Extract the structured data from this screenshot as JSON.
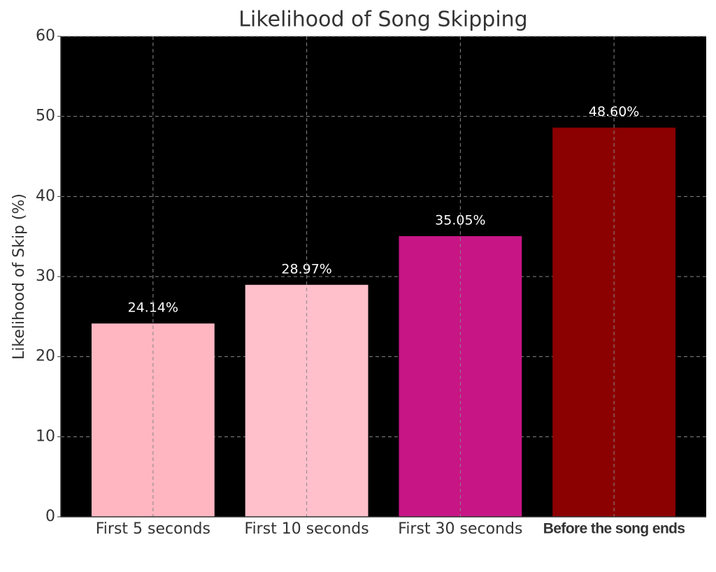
{
  "chart_data": {
    "type": "bar",
    "title": "Likelihood of Song Skipping",
    "y_label": "Likelihood of Skip (%)",
    "categories": [
      "First 5 seconds",
      "First 10 seconds",
      "First 30 seconds",
      "Before the song ends"
    ],
    "values": [
      24.14,
      28.97,
      35.05,
      48.6
    ],
    "value_labels": [
      "24.14%",
      "28.97%",
      "35.05%",
      "48.60%"
    ],
    "colors": [
      "#ffb6c1",
      "#ffc0cb",
      "#c71585",
      "#8b0000"
    ],
    "ylim": [
      0,
      60
    ],
    "yticks": [
      0,
      10,
      20,
      30,
      40,
      50,
      60
    ],
    "grid": true,
    "background": "#000000"
  }
}
